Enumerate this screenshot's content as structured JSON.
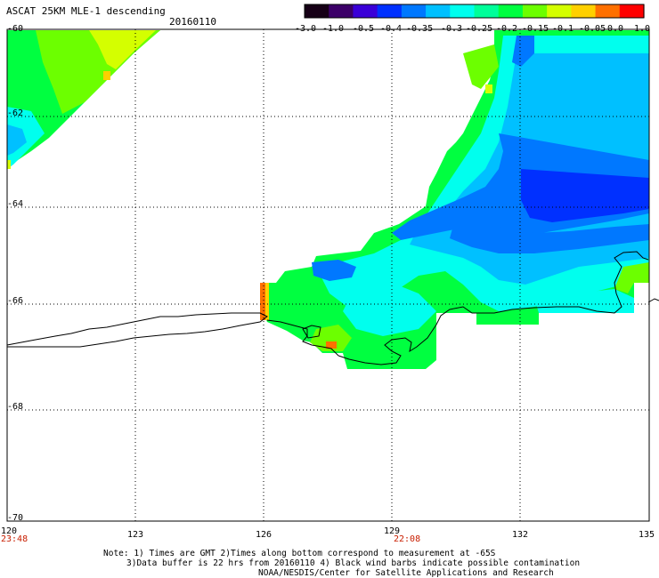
{
  "title": "ASCAT 25KM MLE-1 descending",
  "date": "20160110",
  "colorbar": {
    "labels": [
      "-3.0",
      "-1.0",
      "-0.5",
      "-0.4",
      "-0.35",
      "-0.3",
      "-0.25",
      "-0.2",
      "-0.15",
      "-0.1",
      "-0.05",
      "0.0",
      "1.0"
    ],
    "colors": [
      "#160016",
      "#3c0068",
      "#3a00d8",
      "#0030ff",
      "#0078ff",
      "#00c0ff",
      "#00ffee",
      "#00ff9a",
      "#00ff40",
      "#6cff00",
      "#d4ff00",
      "#ffd000",
      "#ff7000",
      "#ff0000"
    ]
  },
  "axes": {
    "lat_labels": [
      "-60",
      "-62",
      "-64",
      "-66",
      "-68",
      "-70"
    ],
    "lon_labels": [
      "120",
      "123",
      "126",
      "129",
      "132",
      "135"
    ],
    "times": [
      "23:48",
      "22:08"
    ]
  },
  "notes": {
    "line1": "Note: 1) Times are GMT 2)Times along bottom correspond to measurement at -65S",
    "line2": "3)Data buffer is 22 hrs from 20160110 4) Black wind barbs indicate possible contamination",
    "line3": "NOAA/NESDIS/Center for Satellite Applications and Research"
  }
}
